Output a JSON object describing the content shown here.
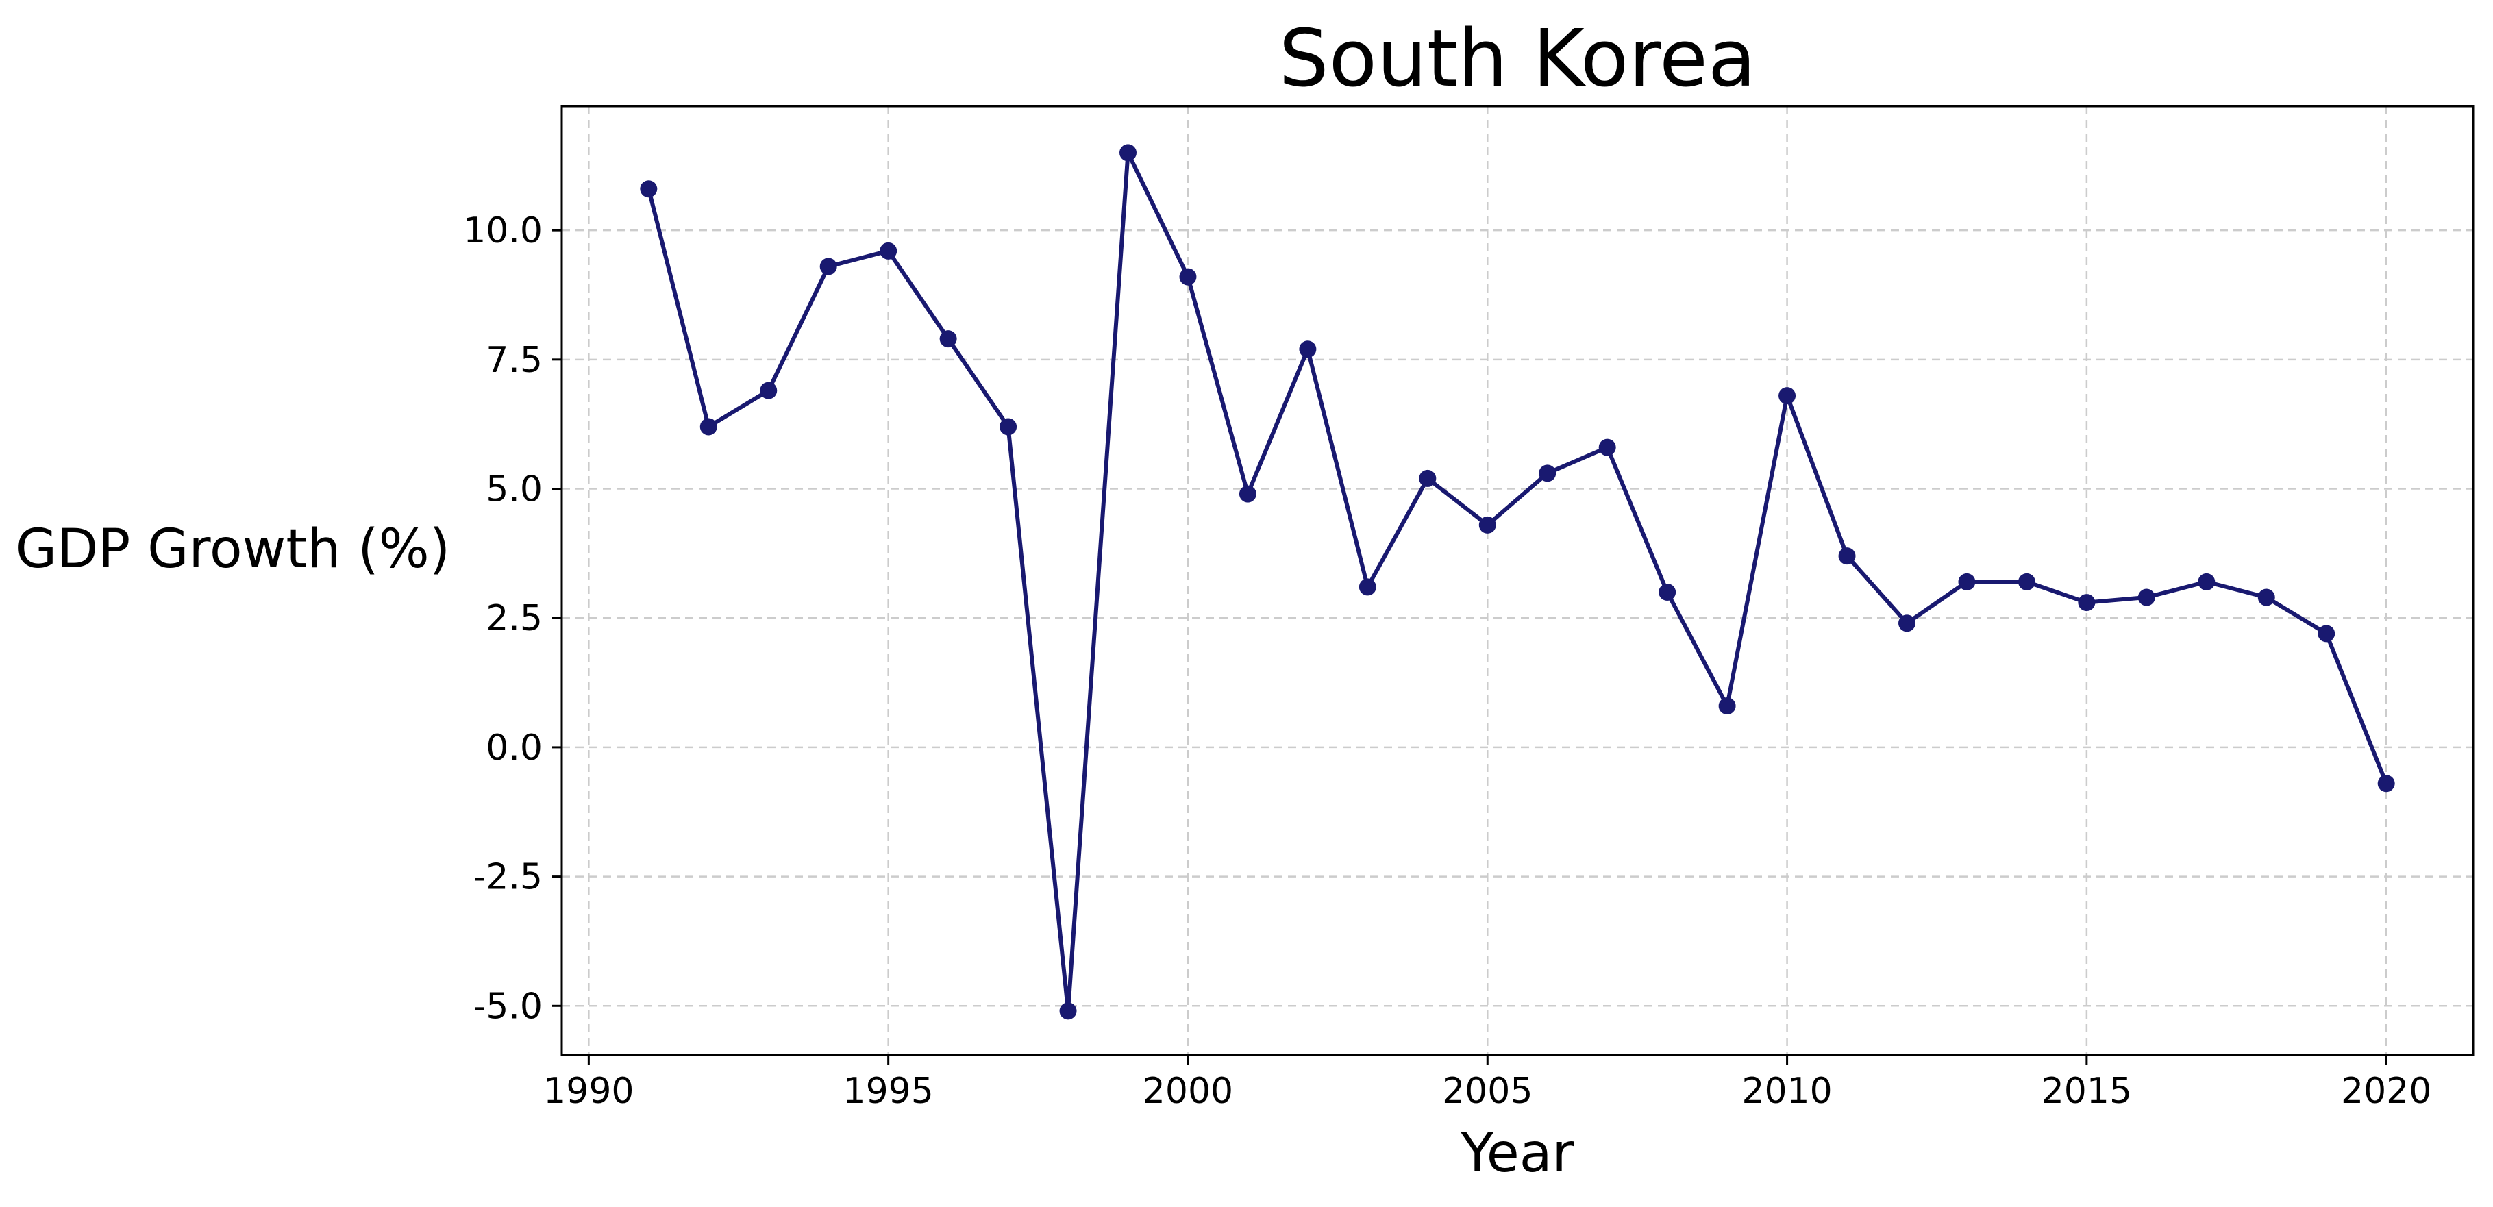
{
  "colors": {
    "line": "#191970",
    "grid": "#cccccc"
  },
  "chart_data": {
    "type": "line",
    "title": "South Korea",
    "xlabel": "Year",
    "ylabel": "GDP Growth (%)",
    "xlim": [
      1989.55,
      2021.45
    ],
    "ylim": [
      -5.95,
      12.4
    ],
    "grid": true,
    "x_ticks": [
      1990,
      1995,
      2000,
      2005,
      2010,
      2015,
      2020
    ],
    "y_ticks": [
      -5.0,
      -2.5,
      0.0,
      2.5,
      5.0,
      7.5,
      10.0
    ],
    "x_tick_labels": [
      "1990",
      "1995",
      "2000",
      "2005",
      "2010",
      "2015",
      "2020"
    ],
    "y_tick_labels": [
      "-5.0",
      "-2.5",
      "0.0",
      "2.5",
      "5.0",
      "7.5",
      "10.0"
    ],
    "series": [
      {
        "x": [
          1991,
          1992,
          1993,
          1994,
          1995,
          1996,
          1997,
          1998,
          1999,
          2000,
          2001,
          2002,
          2003,
          2004,
          2005,
          2006,
          2007,
          2008,
          2009,
          2010,
          2011,
          2012,
          2013,
          2014,
          2015,
          2016,
          2017,
          2018,
          2019,
          2020
        ],
        "values": [
          10.8,
          6.2,
          6.9,
          9.3,
          9.6,
          7.9,
          6.2,
          -5.1,
          11.5,
          9.1,
          4.9,
          7.7,
          3.1,
          5.2,
          4.3,
          5.3,
          5.8,
          3.0,
          0.8,
          6.8,
          3.7,
          2.4,
          3.2,
          3.2,
          2.8,
          2.9,
          3.2,
          2.9,
          2.2,
          -0.7
        ]
      }
    ]
  }
}
